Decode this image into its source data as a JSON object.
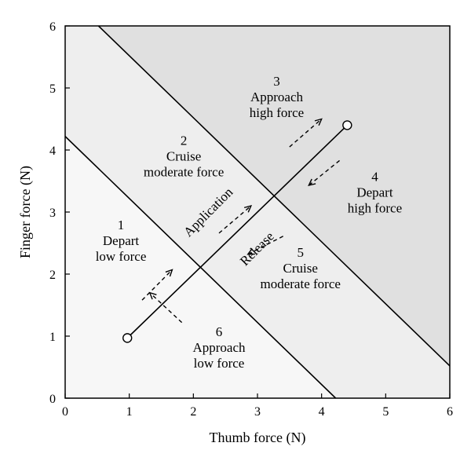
{
  "chart_data": {
    "type": "line",
    "xlabel": "Thumb force (N)",
    "ylabel": "Finger force (N)",
    "xlim": [
      0,
      6
    ],
    "ylim": [
      0,
      6
    ],
    "x_ticks": [
      "0",
      "1",
      "2",
      "3",
      "4",
      "5",
      "6"
    ],
    "y_ticks": [
      "0",
      "1",
      "2",
      "3",
      "4",
      "5",
      "6"
    ],
    "boundaries": [
      {
        "x": [
          0,
          4.22
        ],
        "y": [
          4.22,
          0
        ]
      },
      {
        "x": [
          0.52,
          6
        ],
        "y": [
          6,
          0.52
        ]
      }
    ],
    "trajectory": {
      "x": [
        0.97,
        4.4
      ],
      "y": [
        0.97,
        4.4
      ]
    },
    "region_colors": [
      "#f7f7f7",
      "#eeeeee",
      "#e0e0e0"
    ],
    "regions": [
      {
        "lines": [
          "1",
          "Depart",
          "low force"
        ],
        "x": 0.87,
        "y": 2.72
      },
      {
        "lines": [
          "2",
          "Cruise",
          "moderate force"
        ],
        "x": 1.85,
        "y": 4.08
      },
      {
        "lines": [
          "3",
          "Approach",
          "high force"
        ],
        "x": 3.3,
        "y": 5.04
      },
      {
        "lines": [
          "4",
          "Depart",
          "high force"
        ],
        "x": 4.83,
        "y": 3.5
      },
      {
        "lines": [
          "5",
          "Cruise",
          "moderate force"
        ],
        "x": 3.67,
        "y": 2.28
      },
      {
        "lines": [
          "6",
          "Approach",
          "low force"
        ],
        "x": 2.4,
        "y": 1.0
      }
    ],
    "annotations": [
      {
        "text": "Application",
        "x": 2.28,
        "y": 2.95,
        "angle": -45
      },
      {
        "text": "Release",
        "x": 3.04,
        "y": 2.36,
        "angle": -45
      }
    ],
    "arrows": [
      {
        "from": [
          1.2,
          1.58
        ],
        "to": [
          1.67,
          2.07
        ]
      },
      {
        "from": [
          1.82,
          1.22
        ],
        "to": [
          1.32,
          1.7
        ]
      },
      {
        "from": [
          2.4,
          2.66
        ],
        "to": [
          2.9,
          3.1
        ]
      },
      {
        "from": [
          3.4,
          2.61
        ],
        "to": [
          2.85,
          2.32
        ]
      },
      {
        "from": [
          3.5,
          4.05
        ],
        "to": [
          4.0,
          4.5
        ]
      },
      {
        "from": [
          4.28,
          3.83
        ],
        "to": [
          3.8,
          3.43
        ]
      }
    ]
  }
}
